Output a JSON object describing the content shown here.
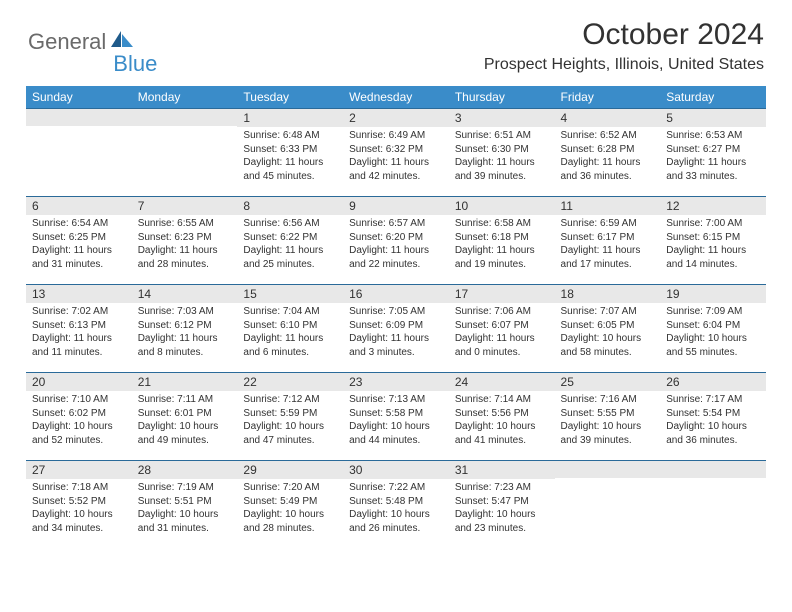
{
  "logo": {
    "part1": "General",
    "part2": "Blue"
  },
  "title": "October 2024",
  "location": "Prospect Heights, Illinois, United States",
  "colors": {
    "header_bg": "#3a8cc9",
    "header_text": "#ffffff",
    "daynum_bg": "#e8e8e8",
    "border": "#2a6a99",
    "text": "#323232"
  },
  "day_headers": [
    "Sunday",
    "Monday",
    "Tuesday",
    "Wednesday",
    "Thursday",
    "Friday",
    "Saturday"
  ],
  "weeks": [
    [
      {
        "n": "",
        "sr": "",
        "ss": "",
        "d1": "",
        "d2": ""
      },
      {
        "n": "",
        "sr": "",
        "ss": "",
        "d1": "",
        "d2": ""
      },
      {
        "n": "1",
        "sr": "Sunrise: 6:48 AM",
        "ss": "Sunset: 6:33 PM",
        "d1": "Daylight: 11 hours",
        "d2": "and 45 minutes."
      },
      {
        "n": "2",
        "sr": "Sunrise: 6:49 AM",
        "ss": "Sunset: 6:32 PM",
        "d1": "Daylight: 11 hours",
        "d2": "and 42 minutes."
      },
      {
        "n": "3",
        "sr": "Sunrise: 6:51 AM",
        "ss": "Sunset: 6:30 PM",
        "d1": "Daylight: 11 hours",
        "d2": "and 39 minutes."
      },
      {
        "n": "4",
        "sr": "Sunrise: 6:52 AM",
        "ss": "Sunset: 6:28 PM",
        "d1": "Daylight: 11 hours",
        "d2": "and 36 minutes."
      },
      {
        "n": "5",
        "sr": "Sunrise: 6:53 AM",
        "ss": "Sunset: 6:27 PM",
        "d1": "Daylight: 11 hours",
        "d2": "and 33 minutes."
      }
    ],
    [
      {
        "n": "6",
        "sr": "Sunrise: 6:54 AM",
        "ss": "Sunset: 6:25 PM",
        "d1": "Daylight: 11 hours",
        "d2": "and 31 minutes."
      },
      {
        "n": "7",
        "sr": "Sunrise: 6:55 AM",
        "ss": "Sunset: 6:23 PM",
        "d1": "Daylight: 11 hours",
        "d2": "and 28 minutes."
      },
      {
        "n": "8",
        "sr": "Sunrise: 6:56 AM",
        "ss": "Sunset: 6:22 PM",
        "d1": "Daylight: 11 hours",
        "d2": "and 25 minutes."
      },
      {
        "n": "9",
        "sr": "Sunrise: 6:57 AM",
        "ss": "Sunset: 6:20 PM",
        "d1": "Daylight: 11 hours",
        "d2": "and 22 minutes."
      },
      {
        "n": "10",
        "sr": "Sunrise: 6:58 AM",
        "ss": "Sunset: 6:18 PM",
        "d1": "Daylight: 11 hours",
        "d2": "and 19 minutes."
      },
      {
        "n": "11",
        "sr": "Sunrise: 6:59 AM",
        "ss": "Sunset: 6:17 PM",
        "d1": "Daylight: 11 hours",
        "d2": "and 17 minutes."
      },
      {
        "n": "12",
        "sr": "Sunrise: 7:00 AM",
        "ss": "Sunset: 6:15 PM",
        "d1": "Daylight: 11 hours",
        "d2": "and 14 minutes."
      }
    ],
    [
      {
        "n": "13",
        "sr": "Sunrise: 7:02 AM",
        "ss": "Sunset: 6:13 PM",
        "d1": "Daylight: 11 hours",
        "d2": "and 11 minutes."
      },
      {
        "n": "14",
        "sr": "Sunrise: 7:03 AM",
        "ss": "Sunset: 6:12 PM",
        "d1": "Daylight: 11 hours",
        "d2": "and 8 minutes."
      },
      {
        "n": "15",
        "sr": "Sunrise: 7:04 AM",
        "ss": "Sunset: 6:10 PM",
        "d1": "Daylight: 11 hours",
        "d2": "and 6 minutes."
      },
      {
        "n": "16",
        "sr": "Sunrise: 7:05 AM",
        "ss": "Sunset: 6:09 PM",
        "d1": "Daylight: 11 hours",
        "d2": "and 3 minutes."
      },
      {
        "n": "17",
        "sr": "Sunrise: 7:06 AM",
        "ss": "Sunset: 6:07 PM",
        "d1": "Daylight: 11 hours",
        "d2": "and 0 minutes."
      },
      {
        "n": "18",
        "sr": "Sunrise: 7:07 AM",
        "ss": "Sunset: 6:05 PM",
        "d1": "Daylight: 10 hours",
        "d2": "and 58 minutes."
      },
      {
        "n": "19",
        "sr": "Sunrise: 7:09 AM",
        "ss": "Sunset: 6:04 PM",
        "d1": "Daylight: 10 hours",
        "d2": "and 55 minutes."
      }
    ],
    [
      {
        "n": "20",
        "sr": "Sunrise: 7:10 AM",
        "ss": "Sunset: 6:02 PM",
        "d1": "Daylight: 10 hours",
        "d2": "and 52 minutes."
      },
      {
        "n": "21",
        "sr": "Sunrise: 7:11 AM",
        "ss": "Sunset: 6:01 PM",
        "d1": "Daylight: 10 hours",
        "d2": "and 49 minutes."
      },
      {
        "n": "22",
        "sr": "Sunrise: 7:12 AM",
        "ss": "Sunset: 5:59 PM",
        "d1": "Daylight: 10 hours",
        "d2": "and 47 minutes."
      },
      {
        "n": "23",
        "sr": "Sunrise: 7:13 AM",
        "ss": "Sunset: 5:58 PM",
        "d1": "Daylight: 10 hours",
        "d2": "and 44 minutes."
      },
      {
        "n": "24",
        "sr": "Sunrise: 7:14 AM",
        "ss": "Sunset: 5:56 PM",
        "d1": "Daylight: 10 hours",
        "d2": "and 41 minutes."
      },
      {
        "n": "25",
        "sr": "Sunrise: 7:16 AM",
        "ss": "Sunset: 5:55 PM",
        "d1": "Daylight: 10 hours",
        "d2": "and 39 minutes."
      },
      {
        "n": "26",
        "sr": "Sunrise: 7:17 AM",
        "ss": "Sunset: 5:54 PM",
        "d1": "Daylight: 10 hours",
        "d2": "and 36 minutes."
      }
    ],
    [
      {
        "n": "27",
        "sr": "Sunrise: 7:18 AM",
        "ss": "Sunset: 5:52 PM",
        "d1": "Daylight: 10 hours",
        "d2": "and 34 minutes."
      },
      {
        "n": "28",
        "sr": "Sunrise: 7:19 AM",
        "ss": "Sunset: 5:51 PM",
        "d1": "Daylight: 10 hours",
        "d2": "and 31 minutes."
      },
      {
        "n": "29",
        "sr": "Sunrise: 7:20 AM",
        "ss": "Sunset: 5:49 PM",
        "d1": "Daylight: 10 hours",
        "d2": "and 28 minutes."
      },
      {
        "n": "30",
        "sr": "Sunrise: 7:22 AM",
        "ss": "Sunset: 5:48 PM",
        "d1": "Daylight: 10 hours",
        "d2": "and 26 minutes."
      },
      {
        "n": "31",
        "sr": "Sunrise: 7:23 AM",
        "ss": "Sunset: 5:47 PM",
        "d1": "Daylight: 10 hours",
        "d2": "and 23 minutes."
      },
      {
        "n": "",
        "sr": "",
        "ss": "",
        "d1": "",
        "d2": ""
      },
      {
        "n": "",
        "sr": "",
        "ss": "",
        "d1": "",
        "d2": ""
      }
    ]
  ]
}
